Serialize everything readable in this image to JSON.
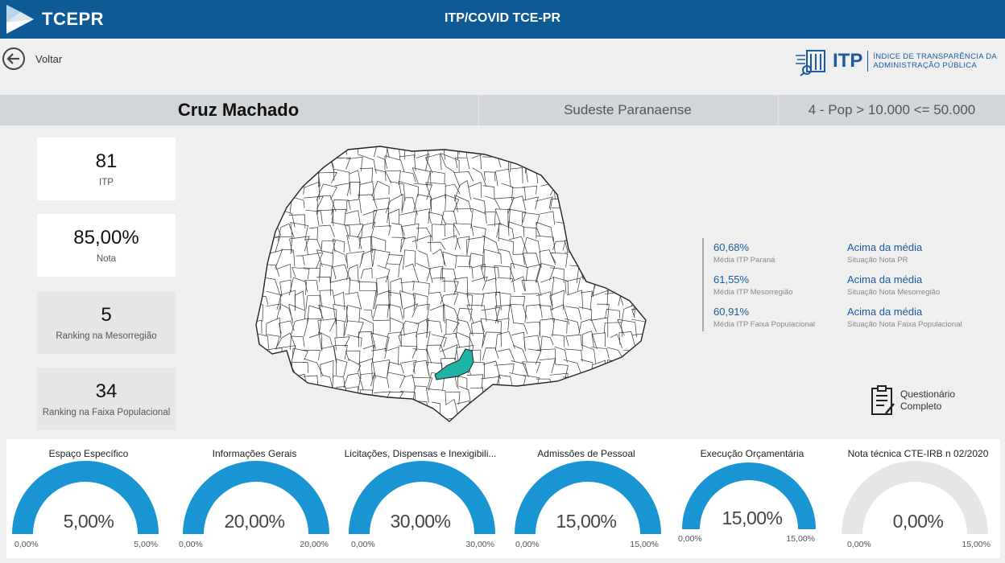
{
  "header": {
    "brand": "TCEPR",
    "title": "ITP/COVID TCE-PR"
  },
  "nav": {
    "back_label": "Voltar"
  },
  "itp_brand": {
    "acronym": "ITP",
    "line1": "ÍNDICE DE TRANSPARÊNCIA DA",
    "line2": "ADMINISTRAÇÃO PÚBLICA"
  },
  "info_bar": {
    "municipality": "Cruz Machado",
    "mesoregion": "Sudeste Paranaense",
    "population_band": "4 - Pop > 10.000 <= 50.000"
  },
  "cards": [
    {
      "value": "81",
      "label": "ITP"
    },
    {
      "value": "85,00%",
      "label": "Nota"
    },
    {
      "value": "5",
      "label": "Ranking na Mesorregião"
    },
    {
      "value": "34",
      "label": "Ranking na Faixa Populacional"
    }
  ],
  "comparison": [
    {
      "value": "60,68%",
      "label": "Média ITP Paraná",
      "status": "Acima da média",
      "status_label": "Situação Nota PR"
    },
    {
      "value": "61,55%",
      "label": "Média ITP Mesorregião",
      "status": "Acima da média",
      "status_label": "Situação Nota Mesorregião"
    },
    {
      "value": "60,91%",
      "label": "Média ITP Faixa Populacional",
      "status": "Acima da média",
      "status_label": "Situação Nota Faixa Populacional"
    }
  ],
  "questionnaire": {
    "line1": "Questionário",
    "line2": "Completo"
  },
  "colors": {
    "header": "#0d5a94",
    "gauge_fill": "#1a95d4",
    "gauge_empty": "#e6e6e6",
    "highlight": "#1fb3a5",
    "accent_text": "#1b5aa0"
  },
  "gauges": [
    {
      "title": "Espaço Específico",
      "value": "5,00%",
      "min": "0,00%",
      "max": "5,00%",
      "fraction": 1.0
    },
    {
      "title": "Informações Gerais",
      "value": "20,00%",
      "min": "0,00%",
      "max": "20,00%",
      "fraction": 1.0
    },
    {
      "title": "Licitações, Dispensas e Inexigibili...",
      "value": "30,00%",
      "min": "0,00%",
      "max": "30,00%",
      "fraction": 1.0
    },
    {
      "title": "Admissões de Pessoal",
      "value": "15,00%",
      "min": "0,00%",
      "max": "15,00%",
      "fraction": 1.0
    },
    {
      "title": "Execução Orçamentária",
      "value": "15,00%",
      "min": "0,00%",
      "max": "15,00%",
      "fraction": 1.0
    },
    {
      "title": "Nota técnica CTE-IRB n 02/2020",
      "value": "0,00%",
      "min": "0,00%",
      "max": "15,00%",
      "fraction": 0.0
    }
  ]
}
